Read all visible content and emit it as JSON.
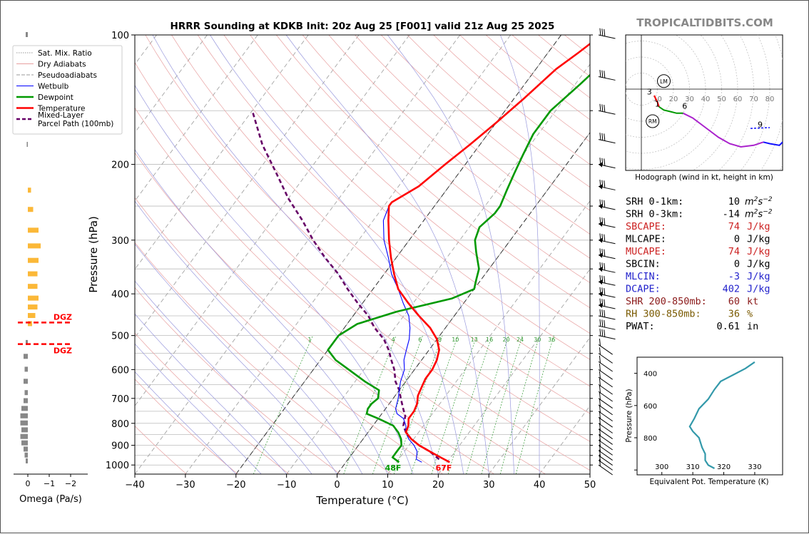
{
  "watermark": "TROPICALTIDBITS.COM",
  "chart_data": {
    "type": "line",
    "title": "HRRR Sounding at KDKB Init: 20z Aug 25 [F001] valid 21z Aug 25 2025",
    "xlabel": "Temperature (°C)",
    "ylabel": "Pressure (hPa)",
    "xlim": [
      -40,
      50
    ],
    "ylim": [
      1050,
      100
    ],
    "y_log_scale": true,
    "skew": true,
    "xticks": [
      "−40",
      "−30",
      "−20",
      "−10",
      "0",
      "10",
      "20",
      "30",
      "40",
      "50"
    ],
    "yticks": [
      "100",
      "200",
      "300",
      "400",
      "500",
      "600",
      "700",
      "800",
      "900",
      "1000"
    ],
    "legend_position": "upper-left",
    "legend": [
      "Sat. Mix. Ratio",
      "Dry Adiabats",
      "Pseudoadiabats",
      "Wetbulb",
      "Dewpoint",
      "Temperature",
      "Mixed-Layer\nParcel Path (100mb)"
    ],
    "series": [
      {
        "name": "Temperature",
        "color": "#ff0000",
        "points": [
          [
            20.5,
            985
          ],
          [
            18,
            960
          ],
          [
            15,
            930
          ],
          [
            12,
            900
          ],
          [
            9.5,
            870
          ],
          [
            7.5,
            840
          ],
          [
            7,
            810
          ],
          [
            6,
            780
          ],
          [
            6,
            750
          ],
          [
            5.5,
            720
          ],
          [
            4.5,
            690
          ],
          [
            4,
            660
          ],
          [
            3.5,
            630
          ],
          [
            3.5,
            600
          ],
          [
            3,
            570
          ],
          [
            2,
            540
          ],
          [
            0,
            510
          ],
          [
            -3,
            480
          ],
          [
            -7,
            450
          ],
          [
            -11,
            420
          ],
          [
            -15,
            390
          ],
          [
            -18,
            360
          ],
          [
            -21,
            330
          ],
          [
            -24,
            300
          ],
          [
            -27,
            270
          ],
          [
            -29,
            250
          ],
          [
            -29,
            245
          ],
          [
            -26,
            225
          ],
          [
            -24,
            200
          ],
          [
            -22,
            180
          ],
          [
            -20,
            160
          ],
          [
            -18,
            140
          ],
          [
            -16,
            120
          ],
          [
            -14,
            110
          ],
          [
            -12,
            100
          ]
        ]
      },
      {
        "name": "Dewpoint",
        "color": "#009900",
        "points": [
          [
            10.5,
            985
          ],
          [
            8.5,
            960
          ],
          [
            8.5,
            930
          ],
          [
            8.5,
            900
          ],
          [
            7.5,
            870
          ],
          [
            6,
            840
          ],
          [
            4,
            810
          ],
          [
            0,
            780
          ],
          [
            -3,
            760
          ],
          [
            -3.5,
            740
          ],
          [
            -3.5,
            720
          ],
          [
            -3,
            700
          ],
          [
            -4,
            670
          ],
          [
            -8,
            640
          ],
          [
            -13,
            600
          ],
          [
            -17,
            570
          ],
          [
            -20,
            540
          ],
          [
            -20,
            500
          ],
          [
            -18,
            470
          ],
          [
            -12,
            440
          ],
          [
            -3,
            410
          ],
          [
            0,
            390
          ],
          [
            -1,
            370
          ],
          [
            -2,
            350
          ],
          [
            -5,
            320
          ],
          [
            -7,
            300
          ],
          [
            -8,
            280
          ],
          [
            -7,
            260
          ],
          [
            -7,
            250
          ],
          [
            -8,
            230
          ],
          [
            -9,
            210
          ],
          [
            -10,
            190
          ],
          [
            -11,
            170
          ],
          [
            -11,
            150
          ],
          [
            -9,
            130
          ],
          [
            -7,
            110
          ],
          [
            -6,
            100
          ]
        ]
      },
      {
        "name": "Wetbulb",
        "color": "#0000ff",
        "points": [
          [
            15,
            985
          ],
          [
            13.5,
            970
          ],
          [
            12.5,
            930
          ],
          [
            11,
            900
          ],
          [
            9,
            870
          ],
          [
            7.5,
            840
          ],
          [
            6.5,
            810
          ],
          [
            5,
            780
          ],
          [
            3,
            760
          ],
          [
            2,
            740
          ],
          [
            1.5,
            720
          ],
          [
            1,
            700
          ],
          [
            0,
            670
          ],
          [
            -1,
            640
          ],
          [
            -2,
            600
          ],
          [
            -3.5,
            570
          ],
          [
            -4.5,
            540
          ],
          [
            -5.5,
            510
          ],
          [
            -7,
            480
          ],
          [
            -9,
            450
          ],
          [
            -12,
            420
          ],
          [
            -15,
            390
          ],
          [
            -18.5,
            360
          ],
          [
            -21.5,
            330
          ],
          [
            -25,
            300
          ],
          [
            -28,
            270
          ],
          [
            -29,
            250
          ],
          [
            -29,
            245
          ],
          [
            -26,
            225
          ],
          [
            -24,
            200
          ],
          [
            -22,
            180
          ],
          [
            -20,
            160
          ],
          [
            -18,
            140
          ],
          [
            -16,
            120
          ],
          [
            -14,
            110
          ],
          [
            -12,
            100
          ]
        ]
      },
      {
        "name": "Mixed-Layer Parcel Path (100mb)",
        "color": "#660066",
        "points": [
          [
            18,
            970
          ],
          [
            15,
            930
          ],
          [
            12,
            900
          ],
          [
            9.5,
            870
          ],
          [
            7.5,
            840
          ],
          [
            6,
            810
          ],
          [
            5.5,
            790
          ],
          [
            5,
            770
          ],
          [
            3.5,
            740
          ],
          [
            1.5,
            700
          ],
          [
            0,
            670
          ],
          [
            -2,
            640
          ],
          [
            -4,
            600
          ],
          [
            -6,
            570
          ],
          [
            -8,
            540
          ],
          [
            -10.5,
            510
          ],
          [
            -14,
            480
          ],
          [
            -17,
            450
          ],
          [
            -21,
            420
          ],
          [
            -25,
            390
          ],
          [
            -29,
            360
          ],
          [
            -34,
            330
          ],
          [
            -39,
            300
          ],
          [
            -44,
            270
          ],
          [
            -50,
            240
          ],
          [
            -56,
            210
          ],
          [
            -63,
            180
          ],
          [
            -70,
            150
          ]
        ]
      }
    ],
    "surface_labels": {
      "dewpoint": "48F",
      "temperature": "67F"
    },
    "mixing_ratio_labels": [
      "1",
      "4",
      "6",
      "8",
      "10",
      "13",
      "16",
      "20",
      "24",
      "30",
      "36"
    ]
  },
  "omega_panel": {
    "xlabel": "Omega (Pa/s)",
    "xticks": [
      "0",
      "−1",
      "−2"
    ],
    "dgz_label": "DGZ",
    "dgz_levels_hpa": [
      490,
      550
    ]
  },
  "hodograph": {
    "caption": "Hodograph (wind in kt, height in km)",
    "ring_labels": [
      "10",
      "20",
      "30",
      "40",
      "50",
      "60",
      "70",
      "80"
    ],
    "markers": [
      "LM",
      "RM"
    ],
    "height_labels": [
      "3",
      "1",
      "6",
      "9"
    ]
  },
  "indices": [
    {
      "label": "SRH 0-1km:",
      "value": "10",
      "unit": "m2s-2",
      "color": "#000000"
    },
    {
      "label": "SRH 0-3km:",
      "value": "-14",
      "unit": "m2s-2",
      "color": "#000000"
    },
    {
      "label": "SBCAPE:",
      "value": "74",
      "unit": "J/kg",
      "color": "#cc2222"
    },
    {
      "label": "MLCAPE:",
      "value": "0",
      "unit": "J/kg",
      "color": "#000000"
    },
    {
      "label": "MUCAPE:",
      "value": "74",
      "unit": "J/kg",
      "color": "#cc2222"
    },
    {
      "label": "SBCIN:",
      "value": "0",
      "unit": "J/kg",
      "color": "#000000"
    },
    {
      "label": "MLCIN:",
      "value": "-3",
      "unit": "J/kg",
      "color": "#2222cc"
    },
    {
      "label": "DCAPE:",
      "value": "402",
      "unit": "J/kg",
      "color": "#2222cc"
    },
    {
      "label": "SHR 200-850mb:",
      "value": "60",
      "unit": "kt",
      "color": "#8b1a1a"
    },
    {
      "label": "RH 300-850mb:",
      "value": "36",
      "unit": "%",
      "color": "#7a5a00"
    },
    {
      "label": "PWAT:",
      "value": "0.61",
      "unit": "in",
      "color": "#000000"
    }
  ],
  "theta_e_panel": {
    "xlabel": "Equivalent Pot. Temperature (K)",
    "ylabel": "Pressure (hPa)",
    "xticks": [
      "300",
      "310",
      "320",
      "330"
    ],
    "yticks": [
      "400",
      "600",
      "800"
    ],
    "points": [
      [
        330,
        330
      ],
      [
        327,
        370
      ],
      [
        323,
        410
      ],
      [
        319,
        450
      ],
      [
        317,
        500
      ],
      [
        315,
        560
      ],
      [
        312,
        620
      ],
      [
        310.5,
        680
      ],
      [
        309,
        730
      ],
      [
        310,
        760
      ],
      [
        312,
        800
      ],
      [
        313,
        860
      ],
      [
        314,
        900
      ],
      [
        314,
        940
      ],
      [
        315,
        970
      ],
      [
        317,
        990
      ]
    ]
  }
}
